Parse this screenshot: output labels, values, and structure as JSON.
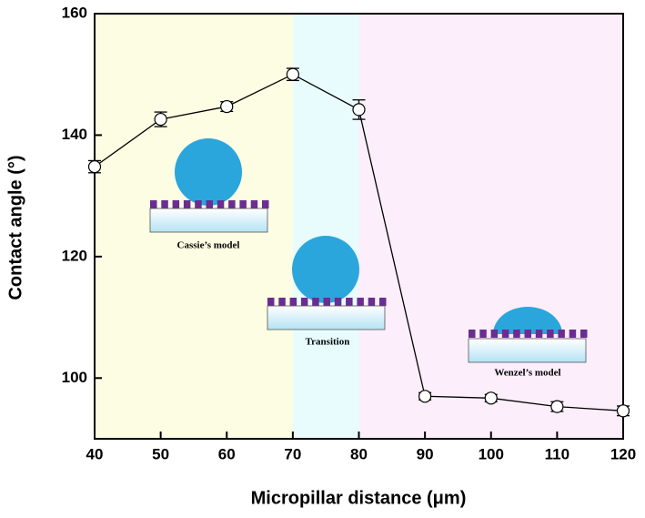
{
  "chart_data": {
    "type": "line",
    "x_label": "Micropillar distance (μm)",
    "y_label": "Contact angle (°)",
    "x": [
      40,
      50,
      60,
      70,
      80,
      90,
      100,
      110,
      120
    ],
    "series": [
      {
        "color": "#000000",
        "values": [
          134.8,
          142.6,
          144.7,
          150.0,
          144.2,
          97.0,
          96.7,
          95.3,
          94.6
        ],
        "errors": [
          1.0,
          1.2,
          0.8,
          1.0,
          1.6,
          0.6,
          0.6,
          0.8,
          0.8
        ]
      }
    ],
    "xlim": [
      40,
      120
    ],
    "xticks": [
      40,
      50,
      60,
      70,
      80,
      90,
      100,
      110,
      120
    ],
    "ylim": [
      90,
      160
    ],
    "yticks": [
      100,
      120,
      140,
      160
    ],
    "regions": [
      {
        "from": 40,
        "to": 70,
        "color": "#fdfde4"
      },
      {
        "from": 70,
        "to": 80,
        "color": "#e9fcfd"
      },
      {
        "from": 80,
        "to": 120,
        "color": "#fdeefb"
      }
    ],
    "annotations": [
      "Cassie’s model",
      "Transition",
      "Wenzel’s model"
    ]
  }
}
